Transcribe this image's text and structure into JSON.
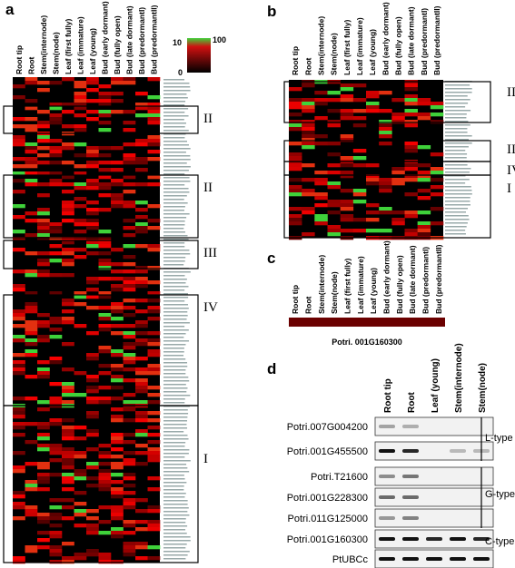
{
  "panels": {
    "a": {
      "label": "a",
      "columns": [
        "Root tip",
        "Root",
        "Stem(internode)",
        "Stem(node)",
        "Leaf (first fully)",
        "Leaf (immature)",
        "Leaf (young)",
        "Bud (early dormant)",
        "Bud (fully open)",
        "Bud (late dormant)",
        "Bud (predormantI)",
        "Bud (predormantII)"
      ],
      "colorbar": {
        "top_left": "10",
        "top_right": "100",
        "bottom": "0"
      },
      "clusters": [
        "II",
        "II",
        "III",
        "IV",
        "I"
      ]
    },
    "b": {
      "label": "b",
      "columns": [
        "Root tip",
        "Root",
        "Stem(internode)",
        "Stem(node)",
        "Leaf (first fully)",
        "Leaf (immature)",
        "Leaf (young)",
        "Bud (early dormant)",
        "Bud (fully open)",
        "Bud (late dormant)",
        "Bud (predormantI)",
        "Bud (predormantII)"
      ],
      "clusters": [
        "II",
        "III",
        "IV",
        "I"
      ]
    },
    "c": {
      "label": "c",
      "columns": [
        "Root tip",
        "Root",
        "Stem(internode)",
        "Stem(node)",
        "Leaf (first fully)",
        "Leaf (immature)",
        "Leaf (young)",
        "Bud (early dormant)",
        "Bud (fully open)",
        "Bud (late dormant)",
        "Bud (predormantI)",
        "Bud (predormantII)"
      ],
      "gene": "Potri. 001G160300"
    },
    "d": {
      "label": "d",
      "columns": [
        "Root tip",
        "Root",
        "Leaf (young)",
        "Stem(internode)",
        "Stem(node)"
      ],
      "rows": [
        "Potri.007G004200",
        "Potri.001G455500",
        "Potri.T21600",
        "Potri.001G228300",
        "Potri.011G125000",
        "Potri.001G160300",
        "PtUBCc"
      ],
      "types": [
        "L-type",
        "G-type",
        "C-type"
      ]
    }
  }
}
